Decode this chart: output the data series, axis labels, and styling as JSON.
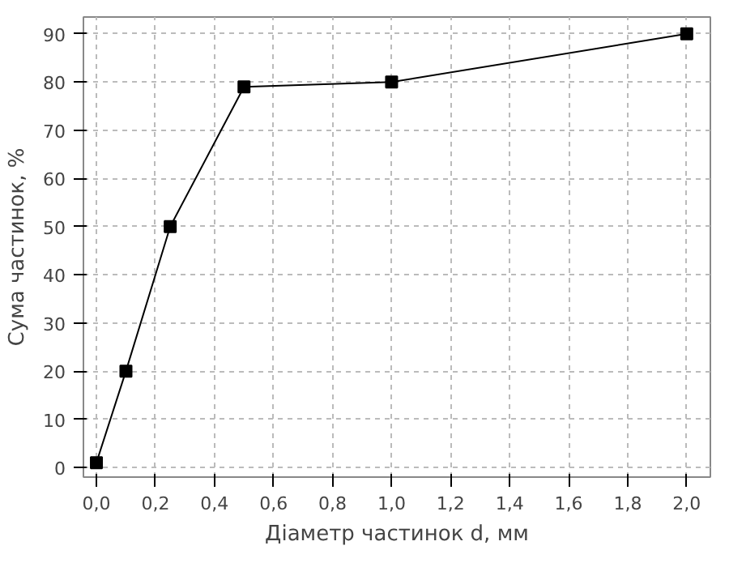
{
  "chart_data": {
    "type": "line",
    "xlabel": "Діаметр частинок d, мм",
    "ylabel": "Сума частинок, %",
    "x": [
      0,
      0.1,
      0.25,
      0.5,
      1.0,
      2.0
    ],
    "series": [
      {
        "color": "#000000",
        "values": [
          1,
          20,
          50,
          79,
          80,
          90
        ]
      }
    ],
    "xlim": [
      -0.044,
      2.08
    ],
    "ylim": [
      -2,
      93.5
    ],
    "xticks": [
      {
        "value": 0,
        "label": "0,0"
      },
      {
        "value": 0.2,
        "label": "0,2"
      },
      {
        "value": 0.4,
        "label": "0,4"
      },
      {
        "value": 0.6,
        "label": "0,6"
      },
      {
        "value": 0.8,
        "label": "0,8"
      },
      {
        "value": 1.0,
        "label": "1,0"
      },
      {
        "value": 1.2,
        "label": "1,2"
      },
      {
        "value": 1.4,
        "label": "1,4"
      },
      {
        "value": 1.6,
        "label": "1,6"
      },
      {
        "value": 1.8,
        "label": "1,8"
      },
      {
        "value": 2.0,
        "label": "2,0"
      }
    ],
    "yticks": [
      0,
      10,
      20,
      30,
      40,
      50,
      60,
      70,
      80,
      90
    ],
    "grid": true,
    "marker": "square",
    "line_style": "solid"
  }
}
